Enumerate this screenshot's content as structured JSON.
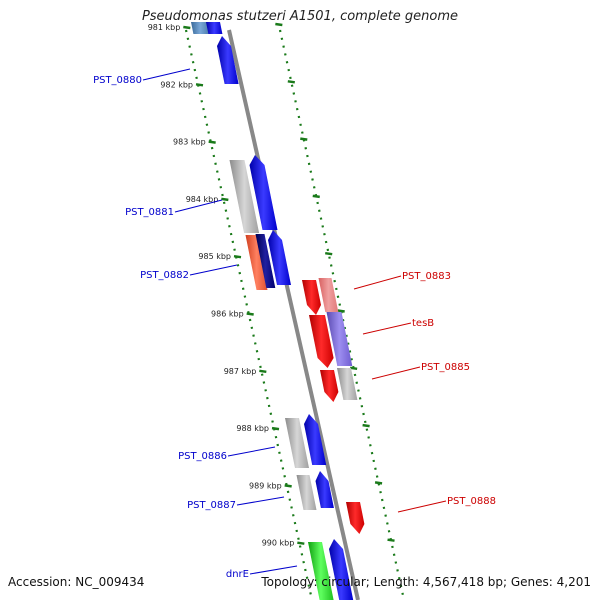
{
  "title": "Pseudomonas stutzeri A1501, complete genome",
  "footer": {
    "accession": "Accession: NC_009434",
    "summary": "Topology: circular; Length: 4,567,418 bp; Genes: 4,201"
  },
  "ruler": [
    {
      "label": "981 kbp",
      "kbp": 981
    },
    {
      "label": "982 kbp",
      "kbp": 982
    },
    {
      "label": "983 kbp",
      "kbp": 983
    },
    {
      "label": "984 kbp",
      "kbp": 984
    },
    {
      "label": "985 kbp",
      "kbp": 985
    },
    {
      "label": "986 kbp",
      "kbp": 986
    },
    {
      "label": "987 kbp",
      "kbp": 987
    },
    {
      "label": "988 kbp",
      "kbp": 988
    },
    {
      "label": "989 kbp",
      "kbp": 989
    },
    {
      "label": "990 kbp",
      "kbp": 990
    }
  ],
  "gene_labels": [
    {
      "text": "PST_0880",
      "side": "left",
      "color": "#0000cc"
    },
    {
      "text": "PST_0881",
      "side": "left",
      "color": "#0000cc"
    },
    {
      "text": "PST_0882",
      "side": "left",
      "color": "#0000cc"
    },
    {
      "text": "PST_0883",
      "side": "right",
      "color": "#cc0000"
    },
    {
      "text": "tesB",
      "side": "right",
      "color": "#cc0000"
    },
    {
      "text": "PST_0885",
      "side": "right",
      "color": "#cc0000"
    },
    {
      "text": "PST_0886",
      "side": "left",
      "color": "#0000cc"
    },
    {
      "text": "PST_0887",
      "side": "left",
      "color": "#0000cc"
    },
    {
      "text": "PST_0888",
      "side": "right",
      "color": "#cc0000"
    },
    {
      "text": "dnrE",
      "side": "left",
      "color": "#0000cc"
    }
  ],
  "colors": {
    "forward_gene": "#0000ee",
    "reverse_gene": "#ee0000",
    "cog_gray": "#b0b0b0",
    "backbone": "#888888",
    "ruler_dots": "#1a7a1a"
  }
}
